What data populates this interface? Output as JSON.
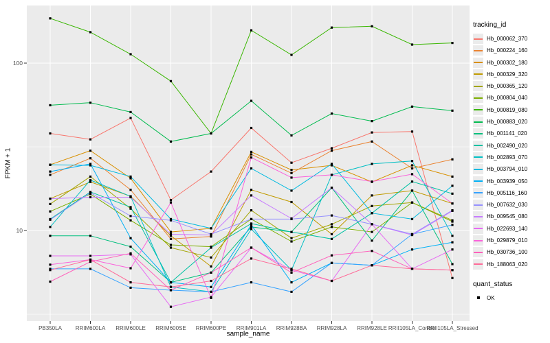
{
  "chart_data": {
    "type": "line",
    "title": "",
    "xlabel": "sample_name",
    "ylabel": "FPKM + 1",
    "y_scale": "log10",
    "y_ticks": [
      100,
      10
    ],
    "y_minor_ticks": [
      31.6,
      3.16
    ],
    "ylim": [
      3.1,
      230
    ],
    "grid": true,
    "panel_bg": "#ebebeb",
    "grid_color": "#ffffff",
    "point_shape": "square",
    "point_color": "#000000",
    "legend_position": "right",
    "categories": [
      "PB350LA",
      "RRIM600LA",
      "RRIM600LE",
      "RRIM600SE",
      "RRIM600PE",
      "RRIM901LA",
      "RRIM928BA",
      "RRIM928LA",
      "RRIM928LE",
      "RRII105LA_Control",
      "RRII105LA_Stressed"
    ],
    "legend": {
      "color_title": "tracking_id",
      "shape_title": "quant_status",
      "shape_items": [
        {
          "label": "OK"
        }
      ]
    },
    "series": [
      {
        "name": "Hb_000062_370",
        "color": "#F8766D",
        "values": [
          38,
          35,
          47,
          15.2,
          22.5,
          41,
          25.4,
          31,
          38.5,
          39,
          5.2
        ]
      },
      {
        "name": "Hb_000224_160",
        "color": "#EA8331",
        "values": [
          21.5,
          27,
          17.5,
          8.9,
          9.2,
          28.5,
          22,
          30,
          34,
          23.5,
          26.6
        ]
      },
      {
        "name": "Hb_000302_180",
        "color": "#D89000",
        "values": [
          24.7,
          30,
          20.5,
          9.8,
          10.3,
          29.5,
          23,
          24.5,
          19.5,
          24.5,
          21
        ]
      },
      {
        "name": "Hb_000329_320",
        "color": "#C09B00",
        "values": [
          15.5,
          19.5,
          16,
          9.3,
          6.1,
          17.5,
          14.8,
          9.5,
          16.2,
          17.3,
          14.5
        ]
      },
      {
        "name": "Hb_000365_120",
        "color": "#A3A500",
        "values": [
          14.4,
          21,
          13.5,
          7.9,
          6.9,
          13.2,
          9,
          10.9,
          14,
          14.7,
          11.5
        ]
      },
      {
        "name": "Hb_000804_040",
        "color": "#7CAE00",
        "values": [
          13,
          16.5,
          11.5,
          8.2,
          8,
          11.7,
          8.6,
          10.5,
          9.8,
          14.7,
          11.3
        ]
      },
      {
        "name": "Hb_000819_080",
        "color": "#39B600",
        "values": [
          185,
          153,
          113,
          78,
          38,
          157,
          112,
          163,
          166,
          129,
          132
        ]
      },
      {
        "name": "Hb_000883_020",
        "color": "#00BB4E",
        "values": [
          56,
          58,
          51,
          34,
          38,
          59.5,
          37,
          50,
          45,
          55,
          52
        ]
      },
      {
        "name": "Hb_001141_020",
        "color": "#00BF7D",
        "values": [
          9.3,
          9.3,
          8,
          4.9,
          5.6,
          10.5,
          9.8,
          18,
          8.7,
          17.3,
          6.3
        ]
      },
      {
        "name": "Hb_002490_020",
        "color": "#00C1A3",
        "values": [
          11.7,
          17,
          13.8,
          4.9,
          7.9,
          11,
          9.8,
          8.9,
          12.7,
          19.6,
          16.6
        ]
      },
      {
        "name": "Hb_002893_070",
        "color": "#00BFC4",
        "values": [
          10.5,
          20,
          16,
          4.6,
          4.3,
          10.2,
          5.8,
          21.5,
          25,
          26,
          9.3
        ]
      },
      {
        "name": "Hb_003794_010",
        "color": "#00BAE0",
        "values": [
          24.7,
          24.5,
          21,
          11.7,
          10.3,
          23.5,
          17.3,
          25,
          12.7,
          11.7,
          18.5
        ]
      },
      {
        "name": "Hb_003939_050",
        "color": "#00B0F6",
        "values": [
          22.5,
          25,
          9,
          4.9,
          4.6,
          10.8,
          4.9,
          6.4,
          6.2,
          7.7,
          8.5
        ]
      },
      {
        "name": "Hb_005116_160",
        "color": "#35A2FF",
        "values": [
          5.9,
          5.9,
          4.55,
          4.4,
          4.3,
          4.9,
          4.3,
          6.4,
          6.2,
          9.5,
          10.8
        ]
      },
      {
        "name": "Hb_007632_030",
        "color": "#9590FF",
        "values": [
          11.6,
          16.8,
          12.2,
          11.5,
          9.5,
          11.7,
          11.7,
          12.3,
          10.9,
          9.5,
          13.2
        ]
      },
      {
        "name": "Hb_009545_080",
        "color": "#C77CFF",
        "values": [
          15.5,
          15.8,
          15.8,
          9.5,
          9.4,
          16.2,
          11.8,
          18,
          10.9,
          9.4,
          13.1
        ]
      },
      {
        "name": "Hb_022693_140",
        "color": "#E76BF3",
        "values": [
          7.05,
          7.05,
          7.2,
          3.5,
          4,
          7.9,
          5.8,
          5,
          10.9,
          5.9,
          7.7
        ]
      },
      {
        "name": "Hb_029879_010",
        "color": "#FA62DB",
        "values": [
          6.25,
          6.7,
          5.95,
          14.7,
          3.95,
          27.3,
          20.7,
          21.5,
          19.6,
          21.7,
          14.5
        ]
      },
      {
        "name": "Hb_030736_100",
        "color": "#FF62BC",
        "values": [
          4.95,
          6.5,
          7.3,
          4.4,
          5.6,
          7.9,
          5.6,
          7.1,
          7.55,
          5.9,
          5.8
        ]
      },
      {
        "name": "Hb_188063_020",
        "color": "#FF6A98",
        "values": [
          5.8,
          6.7,
          4.9,
          4.6,
          5,
          6.8,
          5.9,
          5,
          6.2,
          5.9,
          5.8
        ]
      }
    ]
  }
}
